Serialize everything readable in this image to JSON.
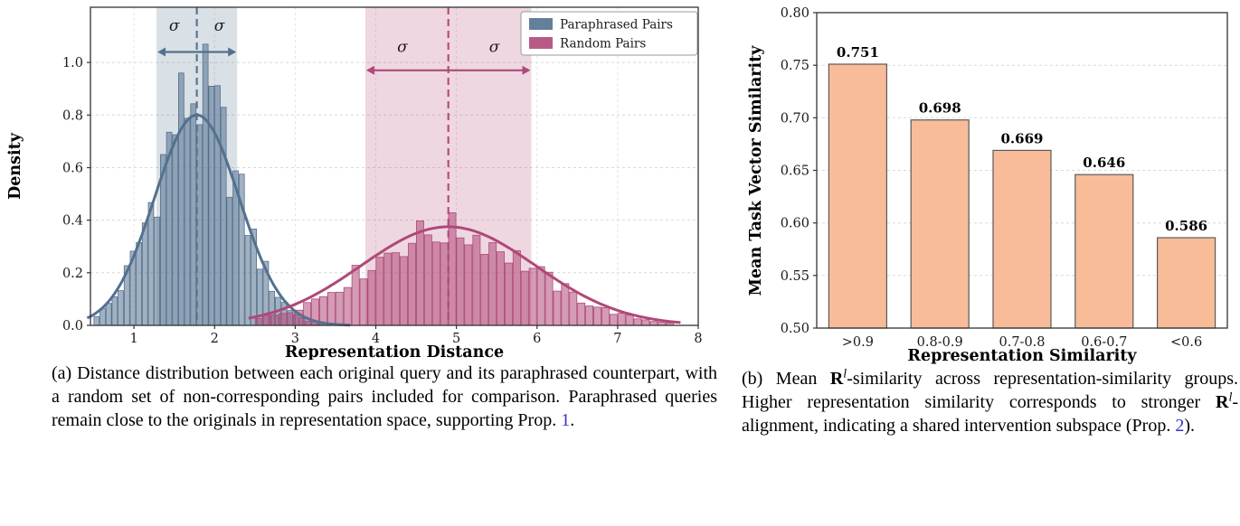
{
  "page": {
    "background": "#ffffff"
  },
  "colors": {
    "link": "#3333cc",
    "axis": "#333333",
    "grid": "#d8d8d8"
  },
  "chart_data": [
    {
      "type": "histogram-kde",
      "panel": "a",
      "xlabel": "Representation Distance",
      "ylabel": "Density",
      "xlim": [
        0.46,
        8.0
      ],
      "ylim": [
        0,
        1.21
      ],
      "xticks": [
        1,
        2,
        3,
        4,
        5,
        6,
        7,
        8
      ],
      "yticks": [
        0.0,
        0.2,
        0.4,
        0.6,
        0.8,
        1.0
      ],
      "grid": "dashed",
      "legend_position": "upper-right",
      "series": [
        {
          "name": "Paraphrased Pairs",
          "color": "#53718e",
          "mean": 1.78,
          "std": 0.5,
          "kde_peak": 0.8,
          "hist_amp": 0.88,
          "hist_jitter": 0.25,
          "range": [
            0.5,
            3.6
          ],
          "bin_width": 0.075,
          "sigma_band": [
            1.28,
            2.28
          ],
          "arrow_y": 1.04,
          "sigma_labels": {
            "text": "σ",
            "x": [
              1.5,
              2.06
            ],
            "y": 1.12
          }
        },
        {
          "name": "Random Pairs",
          "color": "#b04878",
          "mean": 4.9,
          "std": 1.03,
          "kde_peak": 0.375,
          "hist_amp": 0.36,
          "hist_jitter": 0.2,
          "range": [
            2.5,
            7.7
          ],
          "bin_width": 0.1,
          "sigma_band": [
            3.87,
            5.93
          ],
          "arrow_y": 0.97,
          "sigma_labels": {
            "text": "σ",
            "x": [
              4.33,
              5.47
            ],
            "y": 1.04
          }
        }
      ]
    },
    {
      "type": "bar",
      "panel": "b",
      "categories": [
        ">0.9",
        "0.8-0.9",
        "0.7-0.8",
        "0.6-0.7",
        "<0.6"
      ],
      "values": [
        0.751,
        0.698,
        0.669,
        0.646,
        0.586
      ],
      "value_labels": [
        "0.751",
        "0.698",
        "0.669",
        "0.646",
        "0.586"
      ],
      "xlabel": "Representation Similarity",
      "ylabel": "Mean Task Vector Similarity",
      "ylim": [
        0.5,
        0.8
      ],
      "yticks": [
        0.5,
        0.55,
        0.6,
        0.65,
        0.7,
        0.75,
        0.8
      ],
      "grid": "dashed-horizontal",
      "bar_color": "#f8bc98",
      "bar_edge": "#5a5a5a"
    }
  ],
  "captions": {
    "a": {
      "text": "(a) Distance distribution between each original query and its paraphrased counterpart, with a random set of non-corresponding pairs included for comparison. Paraphrased queries remain close to the originals in representation space, supporting Prop. ",
      "link": "1",
      "end": "."
    },
    "b": {
      "p1": "(b) Mean ",
      "r1": "R",
      "sup1": "l",
      "p2": "-similarity across representation-similarity groups. Higher representation similarity corresponds to stronger ",
      "r2": "R",
      "sup2": "l",
      "p3": "-alignment, indicating a shared intervention subspace (Prop. ",
      "link": "2",
      "p4": ")."
    }
  }
}
